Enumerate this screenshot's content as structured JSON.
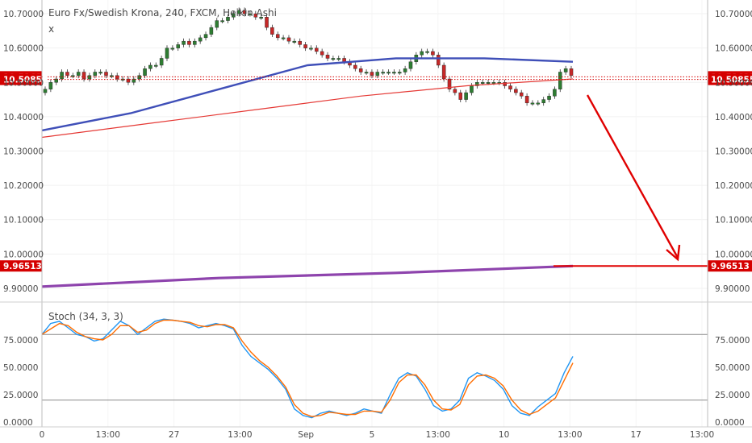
{
  "chart_data": [
    {
      "type": "candlestick",
      "title": "Euro Fx/Swedish Krona, 240, FXCM, Heikin Ashi",
      "close_symbol": "x",
      "ylim": [
        9.86,
        10.74
      ],
      "y_ticks": [
        "10.70000",
        "10.60000",
        "10.50000",
        "10.40000",
        "10.30000",
        "10.20000",
        "10.10000",
        "10.00000",
        "9.90000"
      ],
      "y_tick_values": [
        10.7,
        10.6,
        10.5,
        10.4,
        10.3,
        10.2,
        10.1,
        10.0,
        9.9
      ],
      "x_ticks": [
        "0",
        "13:00",
        "27",
        "13:00",
        "Sep",
        "5",
        "13:00",
        "10",
        "13:00",
        "17",
        "13:00"
      ],
      "price_labels": [
        {
          "text": "10.51623",
          "value": 10.51623,
          "color": "#d50000"
        },
        {
          "text": "10.50855",
          "value": 10.50855,
          "color": "#d50000"
        },
        {
          "text": "9.96513",
          "value": 9.96513,
          "color": "#d50000"
        }
      ],
      "candles_close": [
        10.48,
        10.5,
        10.51,
        10.53,
        10.52,
        10.52,
        10.53,
        10.51,
        10.52,
        10.53,
        10.53,
        10.52,
        10.52,
        10.51,
        10.51,
        10.5,
        10.51,
        10.52,
        10.54,
        10.55,
        10.55,
        10.57,
        10.6,
        10.6,
        10.61,
        10.62,
        10.61,
        10.62,
        10.63,
        10.64,
        10.66,
        10.68,
        10.68,
        10.69,
        10.7,
        10.71,
        10.7,
        10.7,
        10.69,
        10.69,
        10.66,
        10.64,
        10.63,
        10.63,
        10.62,
        10.62,
        10.61,
        10.6,
        10.6,
        10.59,
        10.58,
        10.57,
        10.57,
        10.57,
        10.56,
        10.55,
        10.54,
        10.53,
        10.53,
        10.52,
        10.53,
        10.53,
        10.53,
        10.53,
        10.53,
        10.54,
        10.56,
        10.58,
        10.59,
        10.59,
        10.58,
        10.55,
        10.51,
        10.48,
        10.47,
        10.45,
        10.47,
        10.49,
        10.5,
        10.5,
        10.5,
        10.5,
        10.5,
        10.49,
        10.48,
        10.47,
        10.46,
        10.44,
        10.44,
        10.44,
        10.45,
        10.46,
        10.48,
        10.53,
        10.54,
        10.52
      ],
      "ma_blue_values": [
        10.36,
        10.41,
        10.48,
        10.55,
        10.57,
        10.57,
        10.56
      ],
      "ma_red_values": [
        10.34,
        10.38,
        10.42,
        10.46,
        10.49,
        10.51
      ],
      "ma_purple_values": [
        9.905,
        9.93,
        9.945,
        9.965
      ],
      "target_line_value": 9.96513,
      "bars_count": 96,
      "colors": {
        "up_candle": "#2e7d32",
        "down_candle": "#c62828",
        "ma_blue": "#3f4fb8",
        "ma_red": "#e53935",
        "ma_purple": "#8e44ad",
        "arrow": "#e00000",
        "price_dotted": "#d50000"
      }
    },
    {
      "type": "line",
      "title": "Stoch (34, 3, 3)",
      "ylim": [
        0,
        100
      ],
      "y_ticks": [
        "75.0000",
        "50.0000",
        "25.0000",
        "0.0000"
      ],
      "y_tick_values": [
        75,
        50,
        25,
        0
      ],
      "levels": [
        80,
        20
      ],
      "series": [
        {
          "color": "#2196f3",
          "values": [
            80,
            90,
            92,
            86,
            80,
            78,
            74,
            76,
            84,
            92,
            88,
            80,
            86,
            92,
            94,
            93,
            92,
            90,
            86,
            88,
            90,
            88,
            85,
            70,
            60,
            54,
            48,
            40,
            30,
            12,
            6,
            4,
            8,
            10,
            8,
            6,
            8,
            12,
            10,
            8,
            25,
            40,
            45,
            42,
            30,
            15,
            10,
            12,
            20,
            40,
            45,
            42,
            38,
            30,
            15,
            8,
            6,
            14,
            20,
            26,
            45,
            60
          ]
        },
        {
          "color": "#ff6d00",
          "values": [
            80,
            85,
            90,
            88,
            82,
            78,
            76,
            75,
            80,
            88,
            88,
            82,
            84,
            90,
            93,
            93,
            92,
            91,
            88,
            87,
            89,
            89,
            86,
            74,
            64,
            56,
            50,
            42,
            32,
            16,
            8,
            5,
            6,
            9,
            8,
            7,
            7,
            10,
            10,
            9,
            20,
            36,
            43,
            43,
            34,
            20,
            12,
            11,
            16,
            34,
            42,
            43,
            40,
            33,
            20,
            11,
            7,
            10,
            16,
            22,
            38,
            54
          ]
        }
      ]
    }
  ]
}
